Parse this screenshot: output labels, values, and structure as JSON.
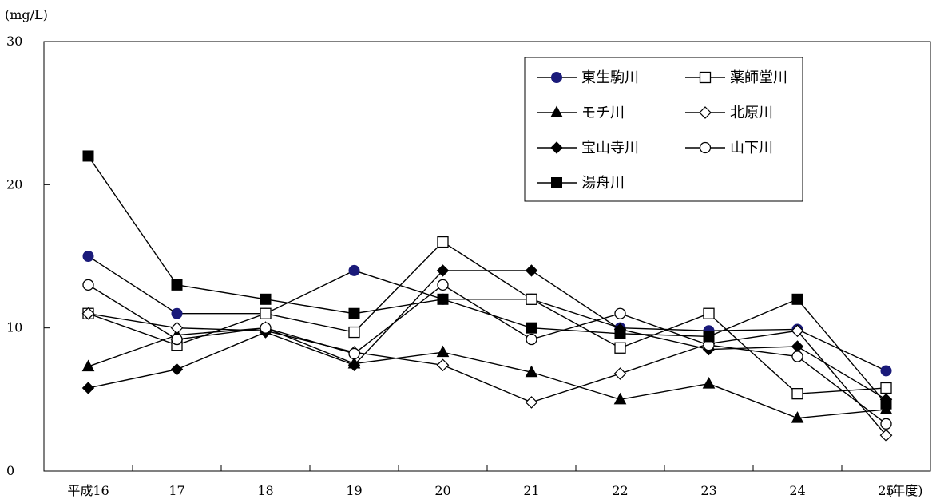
{
  "chart_data": {
    "type": "line",
    "y_unit_label": "(mg/L)",
    "x_unit_label": "(年度)",
    "categories": [
      "平成16",
      "17",
      "18",
      "19",
      "20",
      "21",
      "22",
      "23",
      "24",
      "25"
    ],
    "ylim": [
      0,
      30
    ],
    "y_ticks": [
      0,
      10,
      20,
      30
    ],
    "grid": false,
    "legend_position": "top-right",
    "series": [
      {
        "name": "東生駒川",
        "marker": "circle-filled-navy",
        "color": "#1a1a7a",
        "values": [
          15.0,
          11.0,
          11.0,
          14.0,
          12.0,
          12.0,
          10.0,
          9.8,
          9.9,
          7.0
        ]
      },
      {
        "name": "薬師堂川",
        "marker": "square-open",
        "values": [
          11.0,
          8.8,
          11.0,
          9.7,
          16.0,
          12.0,
          8.6,
          11.0,
          5.4,
          5.8
        ]
      },
      {
        "name": "モチ川",
        "marker": "triangle-filled",
        "values": [
          7.3,
          9.5,
          10.0,
          7.5,
          8.3,
          6.9,
          5.0,
          6.1,
          3.7,
          4.3
        ]
      },
      {
        "name": "北原川",
        "marker": "diamond-open",
        "values": [
          11.0,
          10.0,
          9.8,
          8.3,
          7.4,
          4.8,
          6.8,
          8.9,
          9.8,
          2.5
        ]
      },
      {
        "name": "宝山寺川",
        "marker": "diamond-filled",
        "values": [
          5.8,
          7.1,
          9.7,
          7.4,
          14.0,
          14.0,
          9.9,
          8.5,
          8.7,
          5.0
        ]
      },
      {
        "name": "山下川",
        "marker": "circle-open",
        "values": [
          13.0,
          9.2,
          10.0,
          8.2,
          13.0,
          9.2,
          11.0,
          8.8,
          8.0,
          3.3
        ]
      },
      {
        "name": "湯舟川",
        "marker": "square-filled",
        "values": [
          22.0,
          13.0,
          12.0,
          11.0,
          12.0,
          10.0,
          9.6,
          9.4,
          12.0,
          4.7
        ]
      }
    ]
  }
}
